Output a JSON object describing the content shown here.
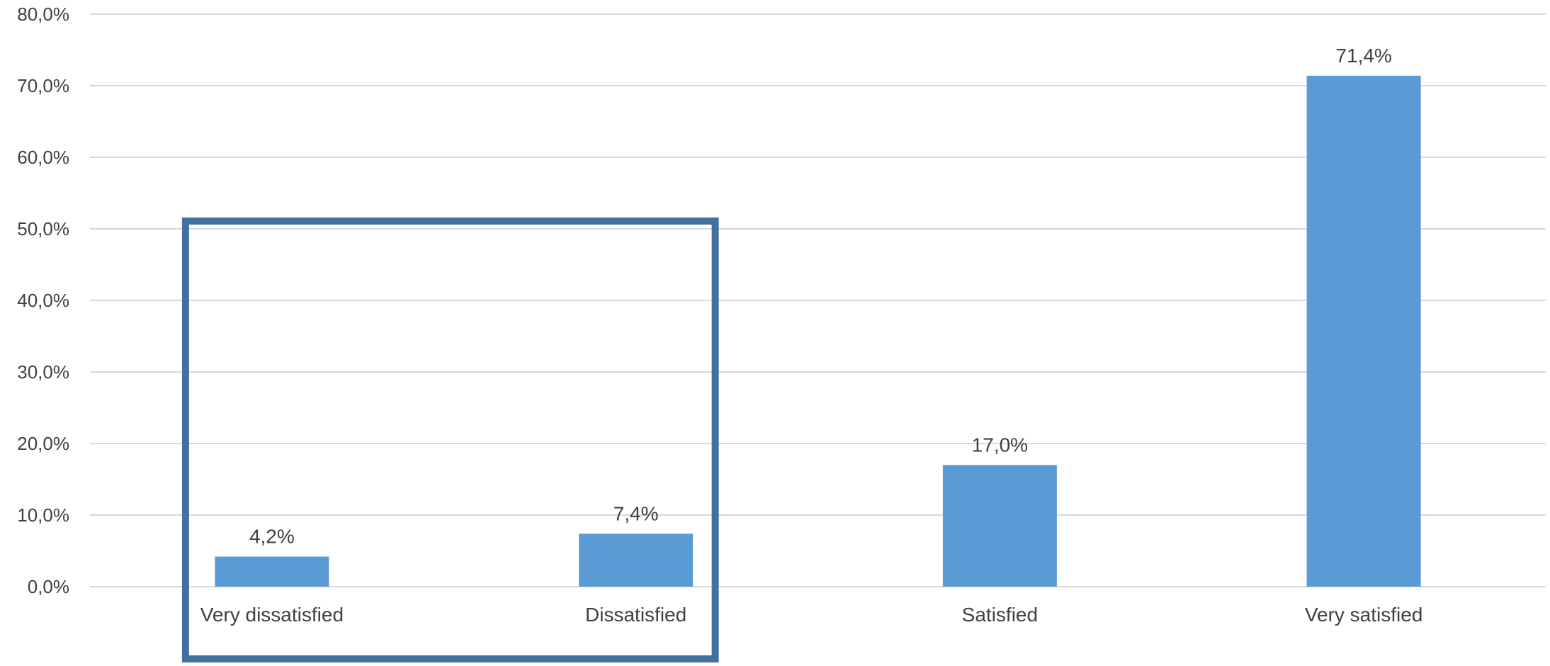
{
  "chart_data": {
    "type": "bar",
    "title": "",
    "xlabel": "",
    "ylabel": "",
    "categories": [
      "Very dissatisfied",
      "Dissatisfied",
      "Satisfied",
      "Very satisfied"
    ],
    "values": [
      4.2,
      7.4,
      17.0,
      71.4
    ],
    "data_labels": [
      "4,2%",
      "7,4%",
      "17,0%",
      "71,4%"
    ],
    "ylim": [
      0,
      80
    ],
    "yticks": [
      0,
      10,
      20,
      30,
      40,
      50,
      60,
      70,
      80
    ],
    "ytick_labels": [
      "0,0%",
      "10,0%",
      "20,0%",
      "30,0%",
      "40,0%",
      "50,0%",
      "60,0%",
      "70,0%",
      "80,0%"
    ],
    "grid": true,
    "legend": "none",
    "highlight": {
      "categories": [
        "Very dissatisfied",
        "Dissatisfied"
      ],
      "color": "#41719c"
    },
    "colors": {
      "bar": "#5b9bd5",
      "grid": "#d9d9d9",
      "text": "#404040"
    }
  }
}
